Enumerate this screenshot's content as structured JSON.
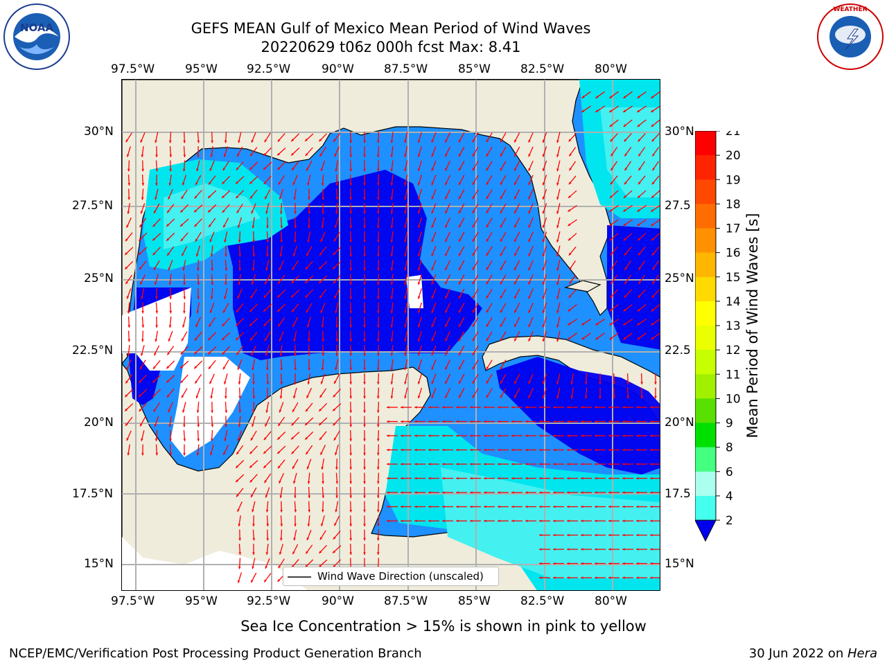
{
  "title": {
    "line1": "GEFS MEAN Gulf of Mexico Mean Period of Wind Waves",
    "line2": "20220629 t06z 000h fcst   Max: 8.41"
  },
  "logos": {
    "noaa": "NOAA",
    "noaa_ring": "NATIONAL OCEANIC AND ATMOSPHERIC ADMINISTRATION · U.S. DEPARTMENT OF COMMERCE",
    "nws_ring": "NATIONAL WEATHER SERVICE"
  },
  "map": {
    "lon_labels": [
      "97.5°W",
      "95°W",
      "92.5°W",
      "90°W",
      "87.5°W",
      "85°W",
      "82.5°W",
      "80°W"
    ],
    "lat_labels_left": [
      "30°N",
      "27.5°N",
      "25°N",
      "22.5°N",
      "20°N",
      "17.5°N",
      "15°N"
    ],
    "lat_labels_right": [
      "30°N",
      "27.5",
      "25°N",
      "22.5",
      "20°N",
      "17.5",
      "15°N"
    ],
    "legend": "Wind Wave Direction (unscaled)",
    "colors": {
      "land": "#efecdc",
      "level_2_4": "#0000ee",
      "level_4_6": "#1e90ff",
      "level_6_8": "#00e5ee",
      "level_8_10": "#44f0f0",
      "arrow": "#ff0000",
      "grid": "#b0b0b0"
    }
  },
  "colorbar": {
    "label": "Mean Period of Wind Waves [s]",
    "ticks": [
      "21",
      "20",
      "19",
      "18",
      "17",
      "16",
      "15",
      "14",
      "13",
      "12",
      "11",
      "10",
      "9",
      "8",
      "6",
      "4",
      "2"
    ],
    "colors": [
      "#ff0000",
      "#ff2400",
      "#ff4800",
      "#ff6d00",
      "#ff9100",
      "#ffb600",
      "#ffda00",
      "#ffff00",
      "#eaff00",
      "#c7ff00",
      "#a0f000",
      "#58e000",
      "#00e000",
      "#44ff80",
      "#aaffee",
      "#44ffee",
      "#00eeee",
      "#1e90ff",
      "#0000ee"
    ]
  },
  "footer": {
    "caption": "Sea Ice Concentration > 15% is shown in pink to yellow",
    "org": "NCEP/EMC/Verification Post Processing Product Generation Branch",
    "date": "30 Jun 2022 on ",
    "machine": "Hera"
  }
}
